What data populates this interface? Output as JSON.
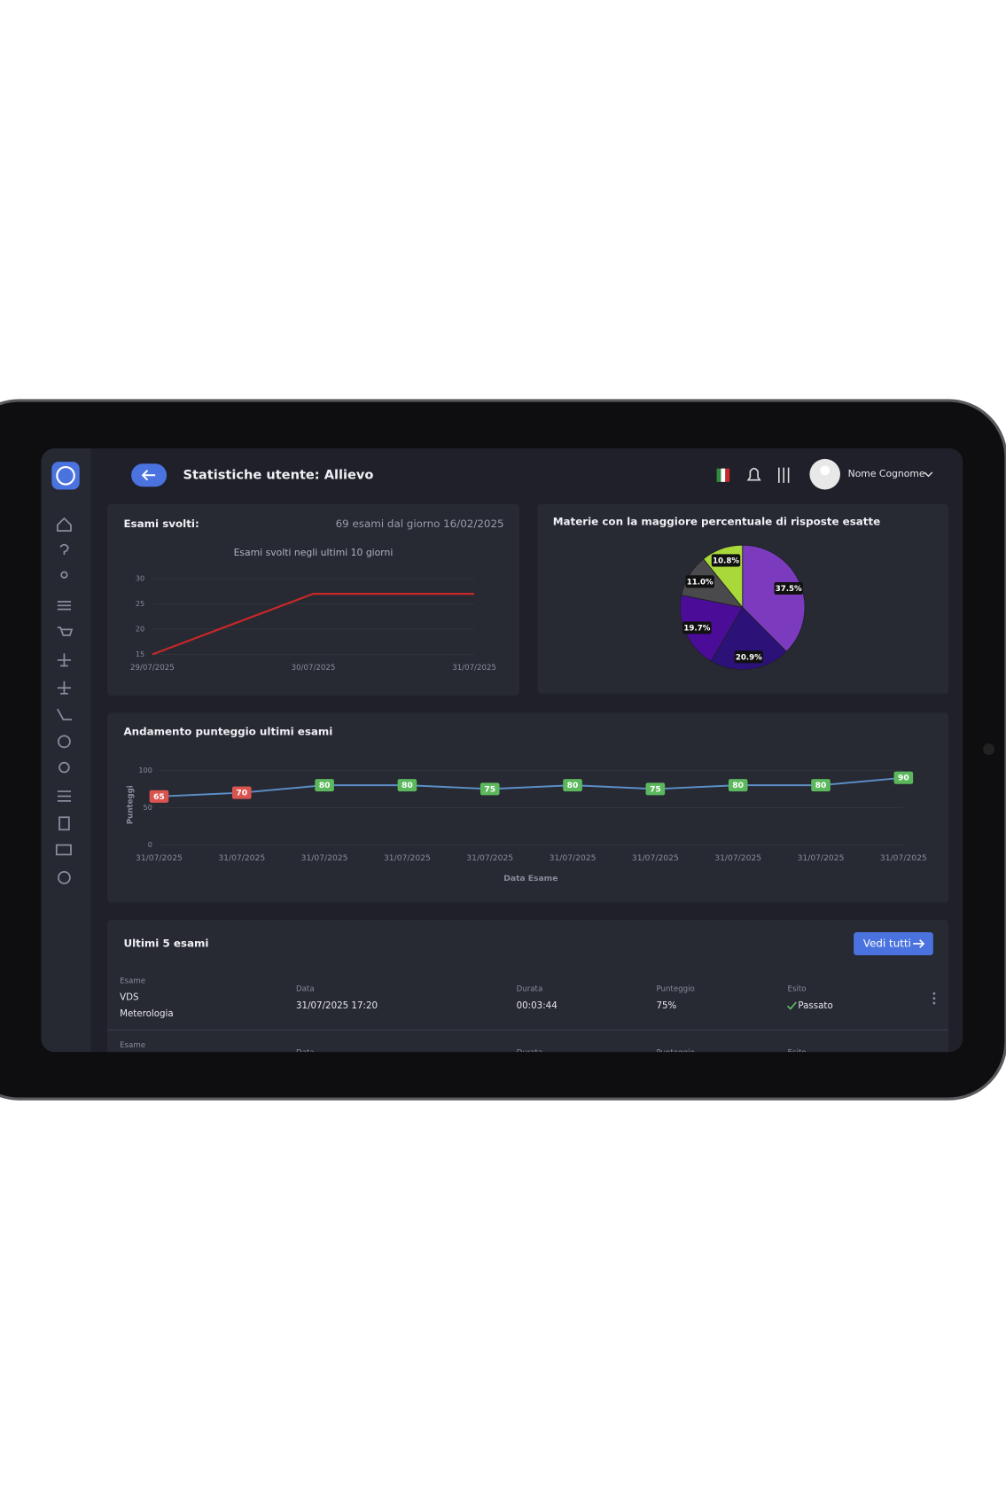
{
  "header": {
    "title": "Statistiche utente: Allievo",
    "user": "Nome Cognome"
  },
  "panels": {
    "exams": {
      "title": "Esami svolti:",
      "summary": "69 esami dal giorno 16/02/2025"
    }
  },
  "chart_data": [
    {
      "type": "line",
      "title": "Esami svolti negli ultimi 10 giorni",
      "categories": [
        "29/07/2025",
        "30/07/2025",
        "31/07/2025"
      ],
      "values": [
        15,
        27,
        27
      ],
      "color": "#c62828",
      "ylim": [
        15,
        30
      ],
      "yticks": [
        15,
        20,
        25,
        30
      ]
    },
    {
      "type": "pie",
      "title": "Materie con la maggiore percentuale di risposte esatte",
      "values": [
        37.5,
        20.9,
        19.7,
        11.0,
        10.8
      ],
      "value_labels": [
        "37.5%",
        "20.9%",
        "19.7%",
        "11.0%",
        "10.8%"
      ],
      "colors": [
        "#7c3bbf",
        "#2b1178",
        "#4b0c98",
        "#4a4a4c",
        "#a8d83a"
      ]
    },
    {
      "type": "line",
      "title": "Andamento punteggio ultimi esami",
      "x_label": "Data Esame",
      "y_label": "Punteggi",
      "categories": [
        "31/07/2025",
        "31/07/2025",
        "31/07/2025",
        "31/07/2025",
        "31/07/2025",
        "31/07/2025",
        "31/07/2025",
        "31/07/2025",
        "31/07/2025",
        "31/07/2025"
      ],
      "values": [
        65,
        70,
        80,
        80,
        75,
        80,
        75,
        80,
        80,
        90
      ],
      "label_colors": [
        "#d9534f",
        "#d9534f",
        "#5cb85c",
        "#5cb85c",
        "#5cb85c",
        "#5cb85c",
        "#5cb85c",
        "#5cb85c",
        "#5cb85c",
        "#5cb85c"
      ],
      "color": "#5b8fc7",
      "ylim": [
        0,
        100
      ],
      "yticks": [
        0,
        50,
        100
      ]
    }
  ],
  "table": {
    "title": "Ultimi 5 esami",
    "button": "Vedi tutti",
    "columns": [
      "Esame",
      "Data",
      "Durata",
      "Punteggio",
      "Esito"
    ],
    "rows": [
      {
        "exam": "VDS",
        "subject": "Meterologia",
        "date": "31/07/2025 17:20",
        "duration": "00:03:44",
        "score": "75%",
        "result": "Passato"
      }
    ]
  }
}
